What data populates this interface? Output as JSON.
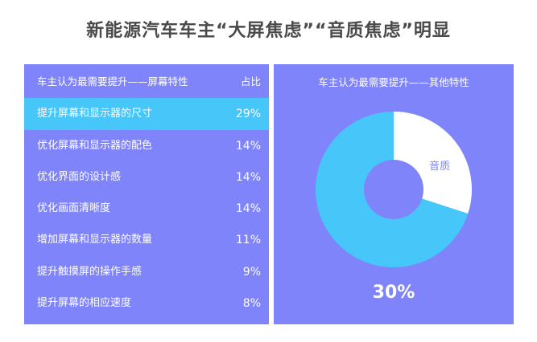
{
  "title": "新能源汽车车主“大屏焦虑”“音质焦虑”明显",
  "table": {
    "header_label": "车主认为最需要提升——屏幕特性",
    "header_value": "占比",
    "rows": [
      {
        "label": "提升屏幕和显示器的尺寸",
        "value": "29%"
      },
      {
        "label": "优化屏幕和显示器的配色",
        "value": "14%"
      },
      {
        "label": "优化界面的设计感",
        "value": "14%"
      },
      {
        "label": "优化画面清晰度",
        "value": "14%"
      },
      {
        "label": "增加屏幕和显示器的数量",
        "value": "11%"
      },
      {
        "label": "提升触摸屏的操作手感",
        "value": "9%"
      },
      {
        "label": "提升屏幕的相应速度",
        "value": "8%"
      }
    ]
  },
  "donut": {
    "title": "车主认为最需要提升——其他特性",
    "slice_label": "音质",
    "value_label": "30%"
  },
  "colors": {
    "panel": "#7f84fb",
    "highlight": "#46c6f9",
    "donut_main": "#46c6f9",
    "donut_slice": "#ffffff",
    "donut_hole": "#7f84fb"
  },
  "chart_data": {
    "type": "pie",
    "categories": [
      "音质"
    ],
    "values": [
      30
    ]
  }
}
